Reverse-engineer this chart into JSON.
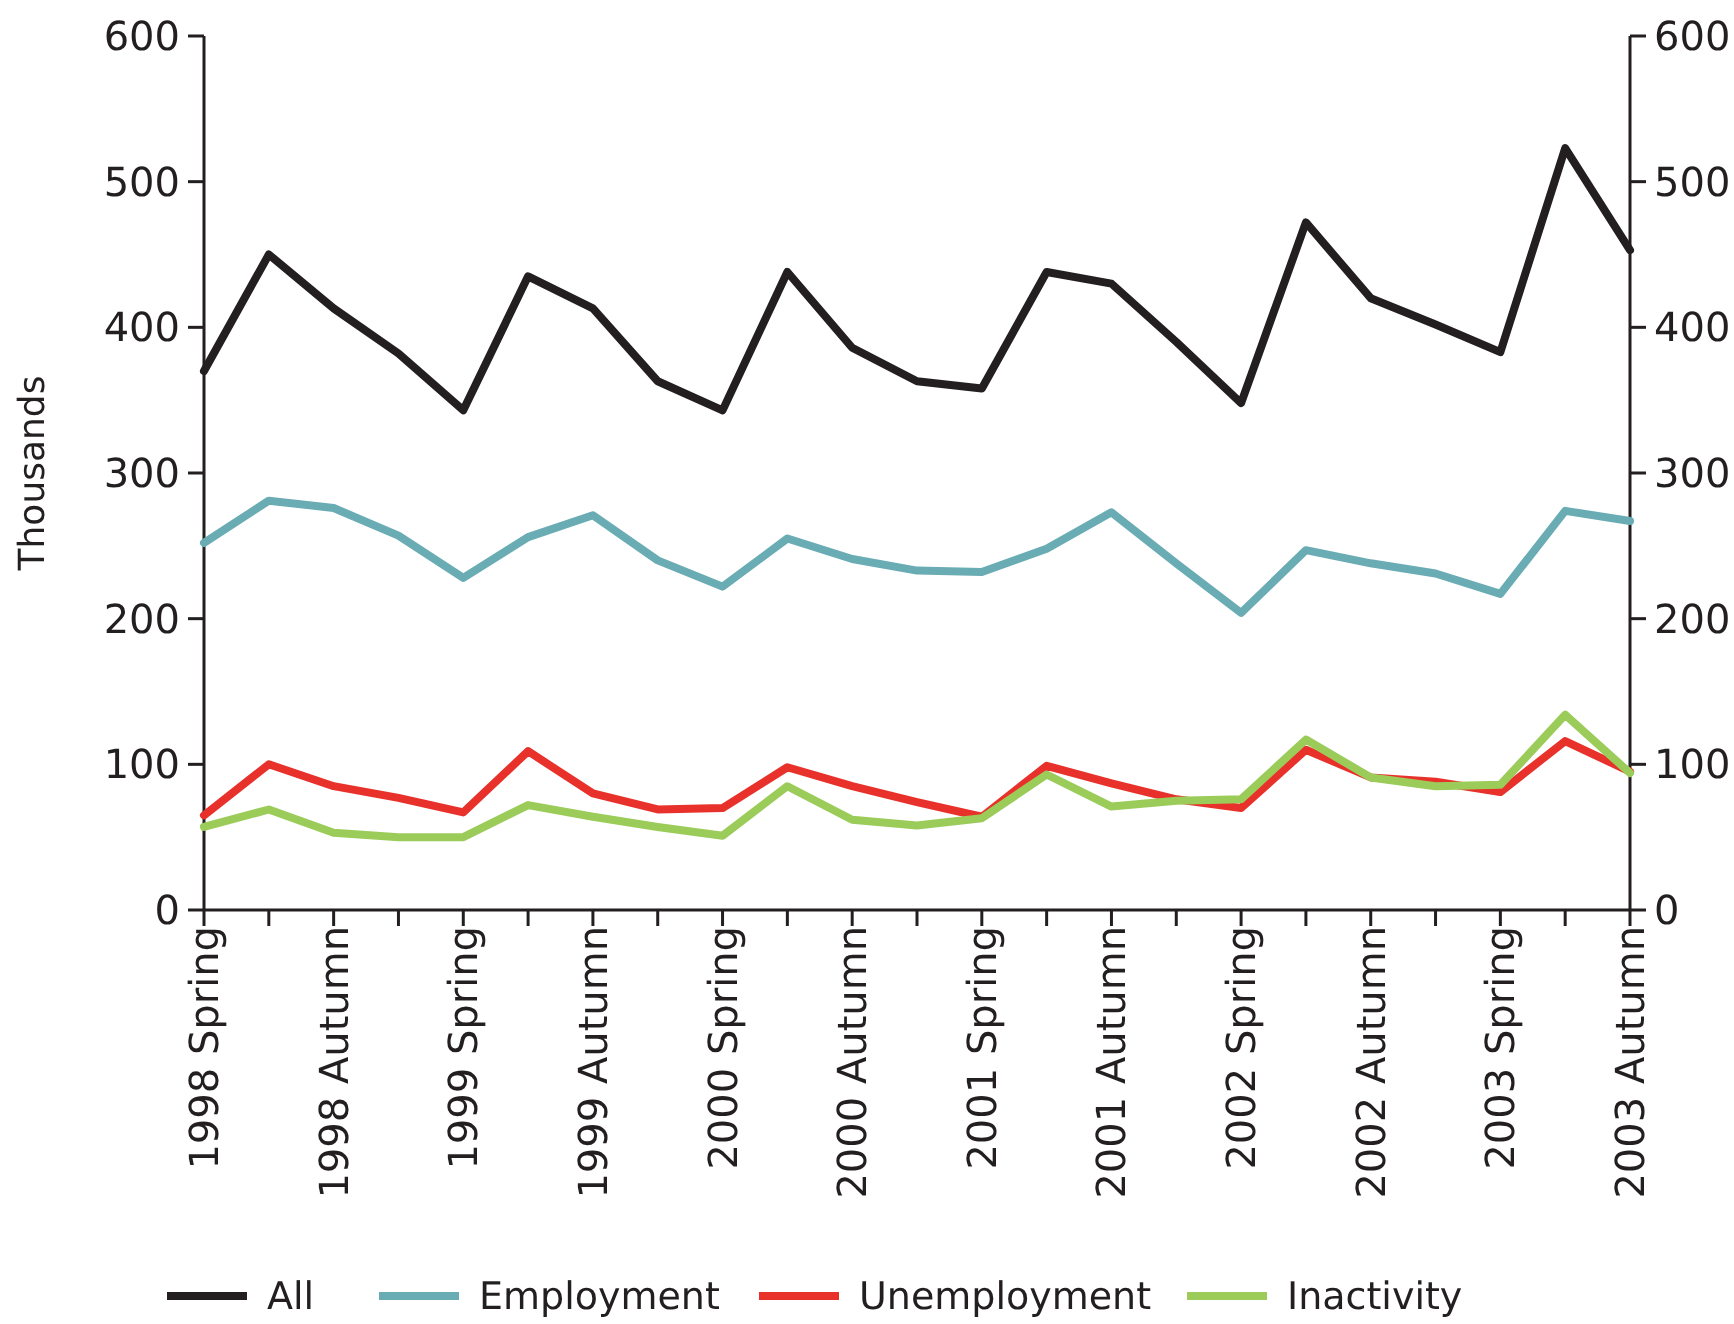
{
  "chart_data": {
    "type": "line",
    "ylabel": "Thousands",
    "categories": [
      "1998 Spring",
      null,
      "1998 Autumn",
      null,
      "1999 Spring",
      null,
      "1999 Autumn",
      null,
      "2000 Spring",
      null,
      "2000 Autumn",
      null,
      "2001 Spring",
      null,
      "2001 Autumn",
      null,
      "2002 Spring",
      null,
      "2002 Autumn",
      null,
      "2003 Spring",
      null,
      "2003 Autumn"
    ],
    "series": [
      {
        "name": "All",
        "color": "#231f20",
        "values": [
          370,
          450,
          413,
          382,
          343,
          435,
          413,
          363,
          343,
          438,
          386,
          363,
          358,
          438,
          430,
          390,
          348,
          472,
          420,
          402,
          383,
          523,
          453
        ]
      },
      {
        "name": "Employment",
        "color": "#6aacb4",
        "values": [
          252,
          281,
          276,
          257,
          228,
          256,
          271,
          240,
          222,
          255,
          241,
          233,
          232,
          248,
          273,
          238,
          204,
          247,
          238,
          231,
          217,
          274,
          267
        ]
      },
      {
        "name": "Unemployment",
        "color": "#e8312a",
        "values": [
          65,
          100,
          85,
          77,
          67,
          109,
          80,
          69,
          70,
          98,
          85,
          74,
          64,
          99,
          87,
          76,
          70,
          110,
          91,
          88,
          81,
          116,
          95
        ]
      },
      {
        "name": "Inactivity",
        "color": "#9bcc5a",
        "values": [
          57,
          69,
          53,
          50,
          50,
          72,
          64,
          57,
          51,
          85,
          62,
          58,
          63,
          93,
          71,
          75,
          76,
          117,
          91,
          85,
          86,
          134,
          94
        ]
      }
    ],
    "ylim": [
      0,
      600
    ],
    "yticks": [
      0,
      100,
      200,
      300,
      400,
      500,
      600
    ],
    "y2lim": [
      0,
      600
    ],
    "y2ticks": [
      0,
      100,
      200,
      300,
      400,
      500,
      600
    ],
    "legend": "bottom",
    "grid": false,
    "marker": "none",
    "line_style": "solid"
  }
}
